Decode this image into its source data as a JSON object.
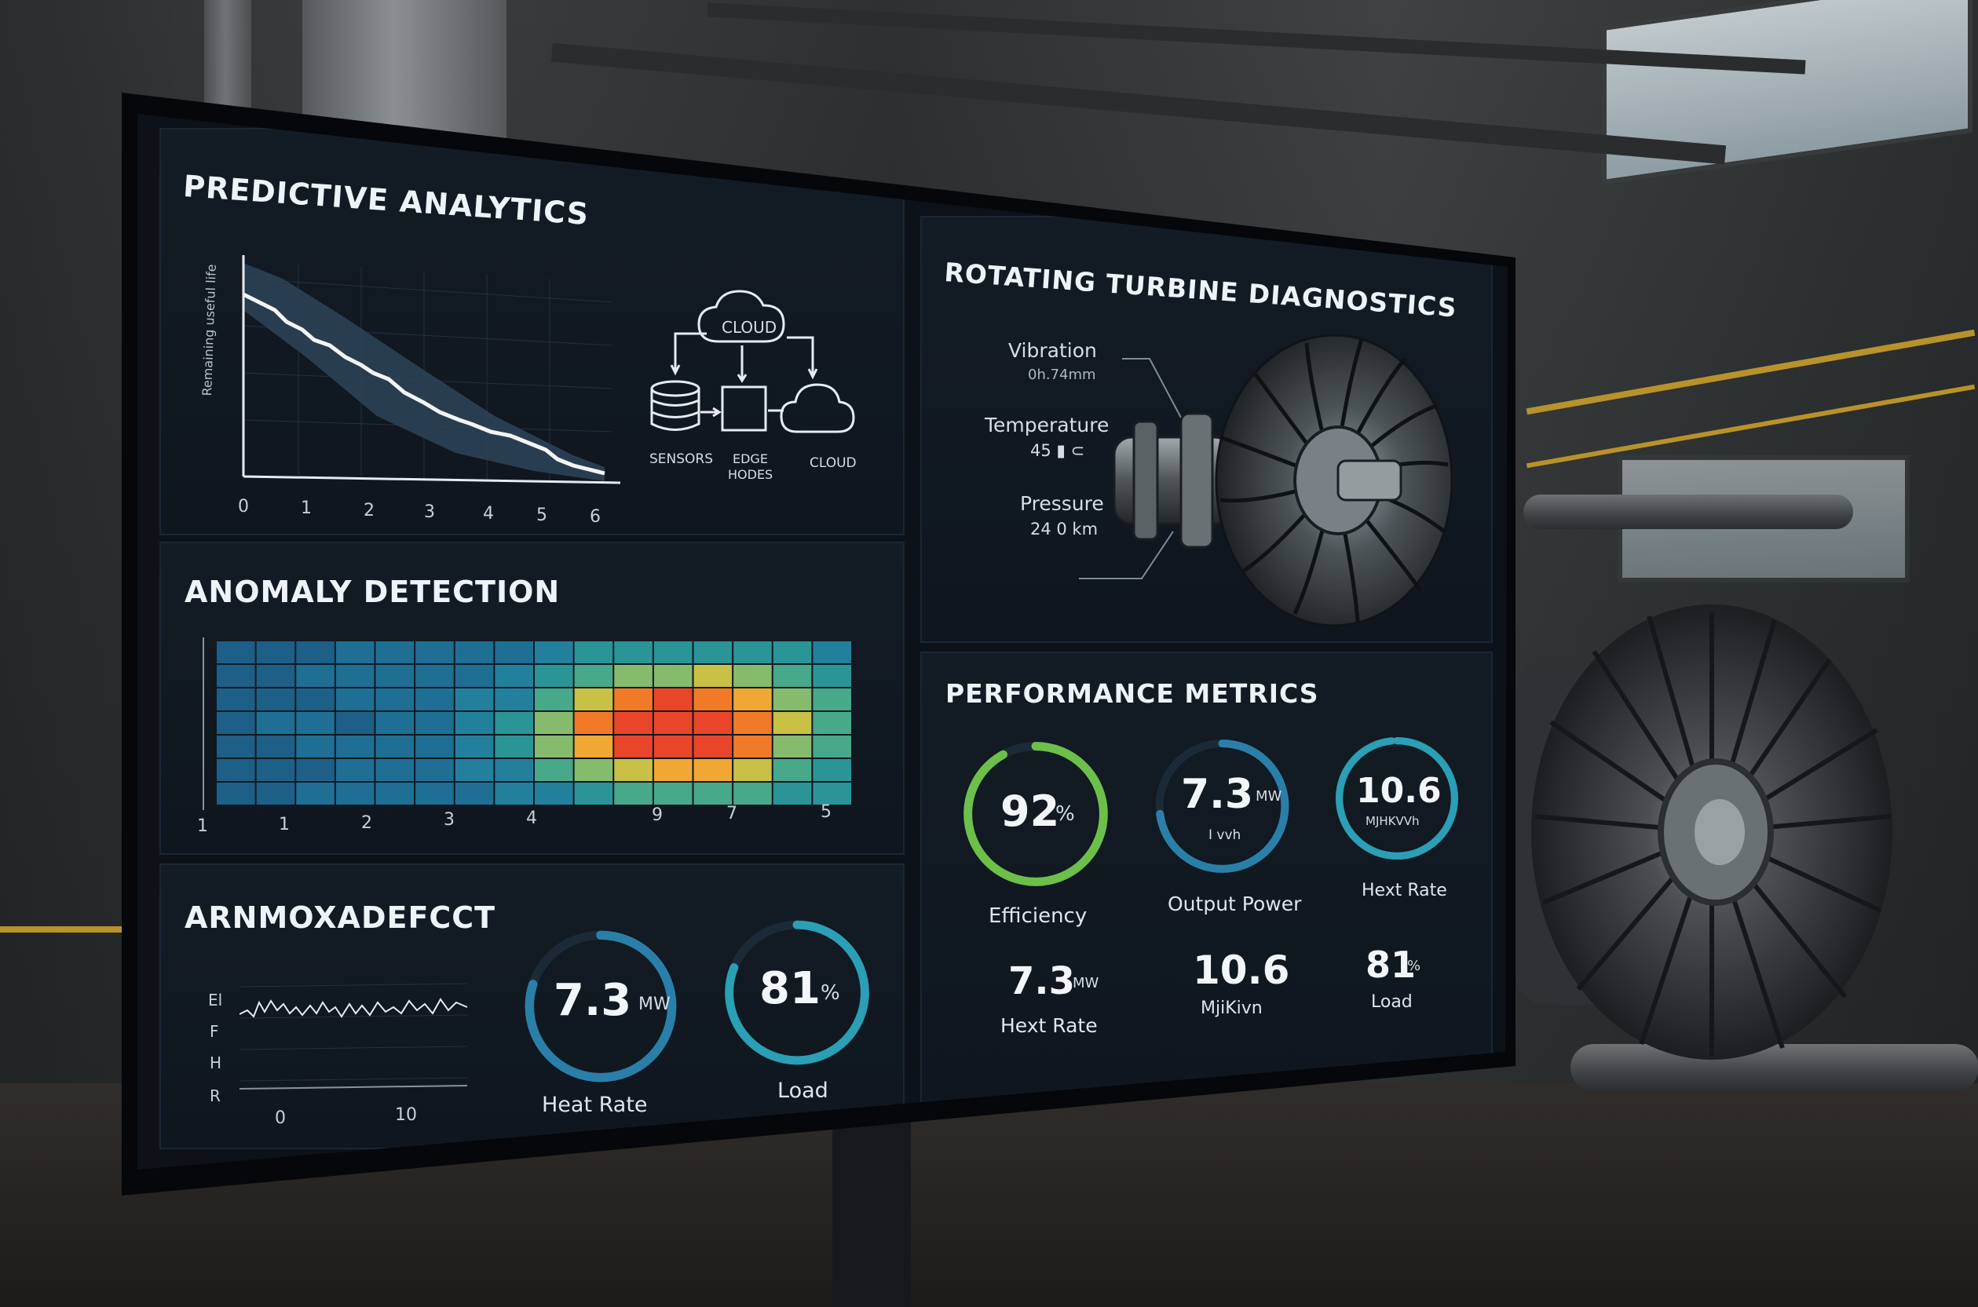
{
  "panels": {
    "predictive": {
      "title": "PREDICTIVE ANALYTICS",
      "ylabel": "Remaining useful life",
      "x_ticks": [
        "0",
        "1",
        "2",
        "3",
        "4",
        "5",
        "6"
      ],
      "flow": {
        "cloud_top": "CLOUD",
        "sensors": "SENSORS",
        "edge_1": "EDGE",
        "edge_2": "HODES",
        "cloud_right": "CLOUD"
      }
    },
    "anomaly": {
      "title": "ANOMALY DETECTION",
      "x_ticks": [
        "1",
        "1",
        "2",
        "3",
        "4",
        "9",
        "7",
        "5"
      ]
    },
    "arnmox": {
      "title": "ARNMOXADEFCCT",
      "y_ticks": [
        "El",
        "F",
        "H",
        "R"
      ],
      "x_ticks": [
        "0",
        "10"
      ],
      "gauge_heat": {
        "value": "7.3",
        "unit": "MW",
        "label": "Heat Rate",
        "fill": 0.8
      },
      "gauge_load": {
        "value": "81",
        "unit": "%",
        "label": "Load",
        "fill": 0.81
      }
    },
    "turbine": {
      "title": "ROTATING TURBINE DIAGNOSTICS",
      "vibration_label": "Vibration",
      "vibration_value": "0h.74mm",
      "temperature_label": "Temperature",
      "temperature_value": "45 ▮ ⊂",
      "pressure_label": "Pressure",
      "pressure_value": "24 0 km"
    },
    "performance": {
      "title": "PERFORMANCE METRICS",
      "efficiency": {
        "value": "92",
        "unit": "%",
        "label": "Efficiency",
        "fill": 0.92
      },
      "output": {
        "value": "7.3",
        "unit": "MW",
        "sub": "I vvh",
        "label": "Output Power",
        "fill": 0.73
      },
      "hext": {
        "value": "10.6",
        "sub": "MJHKVVh",
        "label": "Hext Rate",
        "fill": 1.0
      },
      "row2_a": {
        "value": "7.3",
        "unit": "MW",
        "label": "Hext Rate"
      },
      "row2_b": {
        "value": "10.6",
        "label": "MjiKivn"
      },
      "row2_c": {
        "value": "81",
        "unit": "%",
        "label": "Load"
      }
    }
  },
  "colors": {
    "gauge_blue": "#2a7fa8",
    "gauge_green": "#6cc04a",
    "panel_bg": "#131b24"
  }
}
